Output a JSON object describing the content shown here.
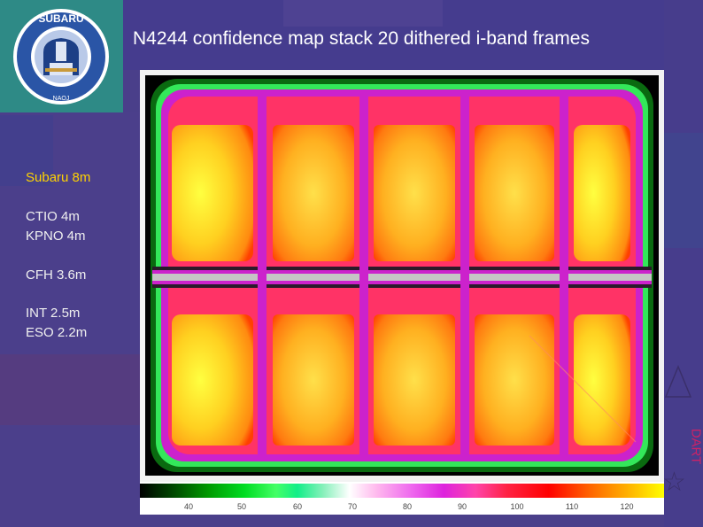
{
  "slide": {
    "title": "N4244 confidence map stack 20 dithered i-band frames",
    "side_label": "DART",
    "telescopes": [
      "Subaru 8m",
      "CTIO 4m",
      "KPNO 4m",
      "CFH 3.6m",
      "INT 2.5m",
      "ESO 2.2m"
    ],
    "highlight_color": "#ffd200"
  },
  "logo": {
    "name": "SUBARU",
    "ring_text": "National Astronomical Observatory of Japan"
  },
  "colorbar": {
    "ticks": [
      "40",
      "50",
      "60",
      "70",
      "80",
      "90",
      "100",
      "110",
      "120"
    ]
  },
  "icons": [
    "triangle-icon",
    "star-icon"
  ]
}
